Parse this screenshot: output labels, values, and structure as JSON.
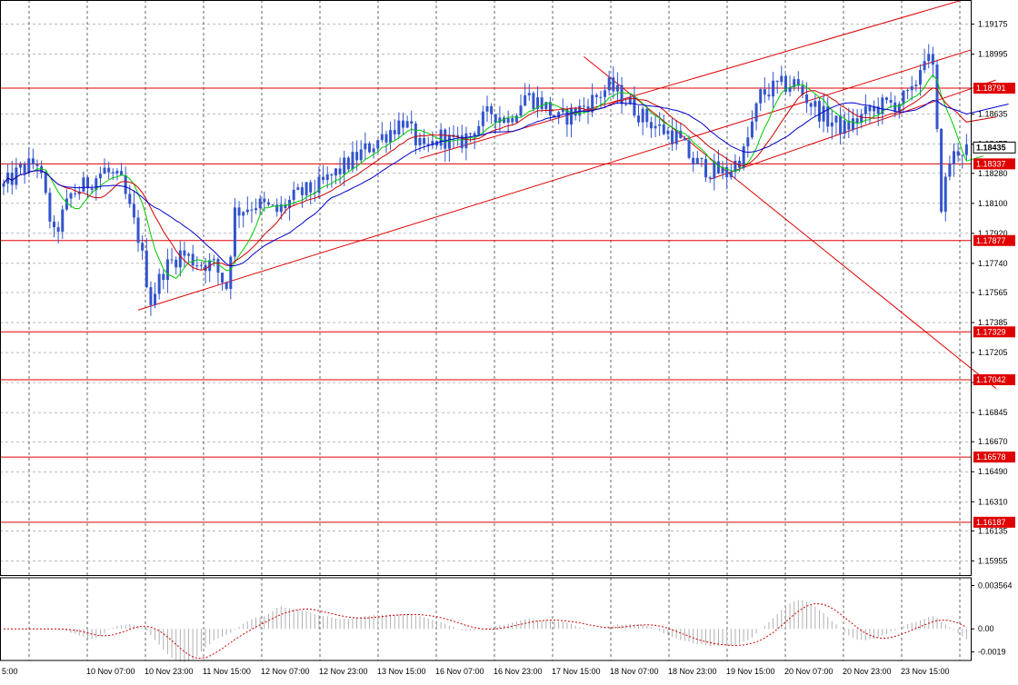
{
  "chart_data": [
    {
      "type": "candlestick",
      "y_axis": {
        "ylim": [
          1.1587,
          1.1932
        ],
        "ticks": [
          "1.19175",
          "1.18995",
          "1.18635",
          "1.18455",
          "1.18280",
          "1.18100",
          "1.17920",
          "1.17740",
          "1.17565",
          "1.17385",
          "1.17205",
          "1.17025",
          "1.16845",
          "1.16670",
          "1.16490",
          "1.16310",
          "1.16135",
          "1.15955"
        ],
        "tick_values": [
          1.19175,
          1.18995,
          1.18635,
          1.18455,
          1.1828,
          1.181,
          1.1792,
          1.1774,
          1.17565,
          1.17385,
          1.17205,
          1.17025,
          1.16845,
          1.1667,
          1.1649,
          1.1631,
          1.16135,
          1.15955
        ]
      },
      "x_axis": {
        "tick_labels": [
          "5:00",
          "10 Nov 07:00",
          "10 Nov 23:00",
          "11 Nov 15:00",
          "12 Nov 07:00",
          "12 Nov 23:00",
          "13 Nov 15:00",
          "16 Nov 07:00",
          "16 Nov 23:00",
          "17 Nov 15:00",
          "18 Nov 07:00",
          "18 Nov 23:00",
          "19 Nov 15:00",
          "20 Nov 07:00",
          "20 Nov 23:00",
          "23 Nov 15:00"
        ],
        "bar_count": 230
      },
      "current_price": {
        "label": "1.18435",
        "value": 1.18435
      },
      "horizontal_levels": [
        {
          "label": "1.18791",
          "value": 1.18791
        },
        {
          "label": "1.18337",
          "value": 1.18337
        },
        {
          "label": "1.17877",
          "value": 1.17877
        },
        {
          "label": "1.17329",
          "value": 1.17329
        },
        {
          "label": "1.17042",
          "value": 1.17042
        },
        {
          "label": "1.16578",
          "value": 1.16578
        },
        {
          "label": "1.16187",
          "value": 1.16187
        }
      ],
      "trendlines": [
        {
          "x1": 32,
          "y1": 1.1746,
          "x2": 230,
          "y2": 1.1902
        },
        {
          "x1": 168,
          "y1": 1.18245,
          "x2": 236,
          "y2": 1.1884
        },
        {
          "x1": 138,
          "y1": 1.1898,
          "x2": 236,
          "y2": 1.1699
        },
        {
          "x1": 99,
          "y1": 1.1837,
          "x2": 228,
          "y2": 1.1932
        }
      ],
      "anchors": [
        [
          0,
          1.182
        ],
        [
          4,
          1.183
        ],
        [
          8,
          1.1835
        ],
        [
          12,
          1.179
        ],
        [
          16,
          1.1815
        ],
        [
          20,
          1.1822
        ],
        [
          24,
          1.183
        ],
        [
          28,
          1.1822
        ],
        [
          32,
          1.179
        ],
        [
          35,
          1.1752
        ],
        [
          38,
          1.177
        ],
        [
          42,
          1.178
        ],
        [
          46,
          1.1775
        ],
        [
          50,
          1.1773
        ],
        [
          53,
          1.176
        ],
        [
          55,
          1.1805
        ],
        [
          60,
          1.181
        ],
        [
          65,
          1.1805
        ],
        [
          70,
          1.1815
        ],
        [
          75,
          1.182
        ],
        [
          80,
          1.183
        ],
        [
          85,
          1.184
        ],
        [
          90,
          1.185
        ],
        [
          95,
          1.186
        ],
        [
          100,
          1.184
        ],
        [
          104,
          1.185
        ],
        [
          108,
          1.1845
        ],
        [
          112,
          1.1855
        ],
        [
          116,
          1.1865
        ],
        [
          120,
          1.186
        ],
        [
          124,
          1.1875
        ],
        [
          128,
          1.187
        ],
        [
          132,
          1.186
        ],
        [
          136,
          1.1865
        ],
        [
          140,
          1.1872
        ],
        [
          144,
          1.188
        ],
        [
          148,
          1.1872
        ],
        [
          152,
          1.1862
        ],
        [
          156,
          1.1855
        ],
        [
          160,
          1.185
        ],
        [
          164,
          1.1835
        ],
        [
          168,
          1.183
        ],
        [
          172,
          1.1828
        ],
        [
          176,
          1.184
        ],
        [
          180,
          1.1875
        ],
        [
          184,
          1.188
        ],
        [
          188,
          1.1882
        ],
        [
          192,
          1.187
        ],
        [
          196,
          1.186
        ],
        [
          200,
          1.1855
        ],
        [
          204,
          1.1862
        ],
        [
          208,
          1.1868
        ],
        [
          212,
          1.187
        ],
        [
          216,
          1.1875
        ],
        [
          219,
          1.19
        ],
        [
          221,
          1.189
        ],
        [
          223,
          1.181
        ],
        [
          225,
          1.1835
        ],
        [
          227,
          1.1842
        ],
        [
          230,
          1.1843
        ]
      ],
      "indicator": {
        "ylim": [
          -0.0026,
          0.0042
        ],
        "ticks": [
          "0.003564",
          "0.00",
          "-0.0019"
        ],
        "tick_values": [
          0.003564,
          0.0,
          -0.0019
        ]
      },
      "colors": {
        "candles": "#3355cc",
        "ma_fast": "#00cc00",
        "ma_mid": "#cc0000",
        "ma_slow": "#0000cc",
        "levels": "#e00000",
        "trendlines": "#e00000",
        "signal": "#cc0000",
        "histogram": "#b0b0b0",
        "grid": "#000000"
      }
    }
  ]
}
